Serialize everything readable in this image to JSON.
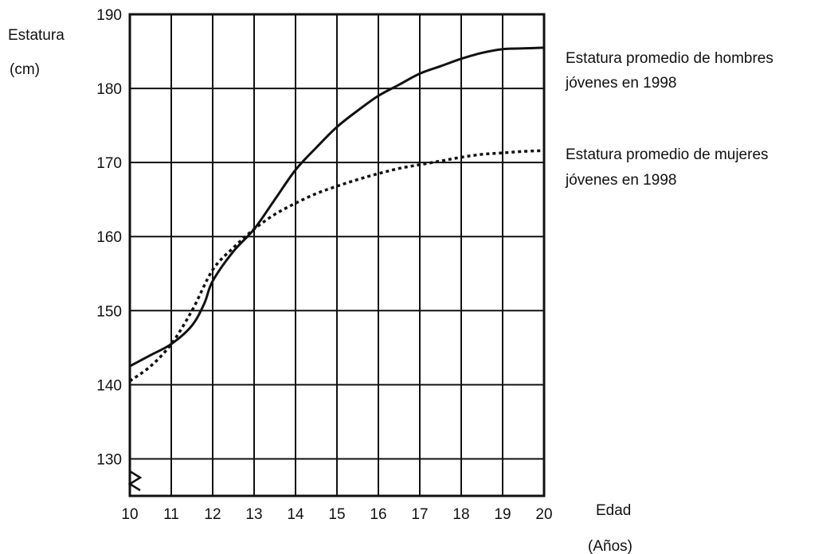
{
  "chart_data": {
    "type": "line",
    "title": "",
    "ylabel": "Estatura",
    "ylabel_unit": "(cm)",
    "xlabel": "Edad",
    "xlabel_unit": "(Años)",
    "xlim": [
      10,
      20
    ],
    "ylim": [
      125,
      190
    ],
    "x_ticks": [
      10,
      11,
      12,
      13,
      14,
      15,
      16,
      17,
      18,
      19,
      20
    ],
    "y_ticks": [
      130,
      140,
      150,
      160,
      170,
      180,
      190
    ],
    "grid": true,
    "axis_break": "zigzag near 130 on y-axis",
    "series": [
      {
        "name": "Estatura promedio de hombres jóvenes en 1998",
        "label_lines": [
          "Estatura promedio de  hombres",
          "jóvenes en 1998"
        ],
        "style": "solid",
        "color": "#111111",
        "x": [
          10,
          10.5,
          11,
          11.5,
          11.8,
          12,
          12.5,
          13,
          13.5,
          14,
          14.5,
          15,
          15.5,
          16,
          16.5,
          17,
          17.5,
          18,
          18.5,
          19,
          19.5,
          20
        ],
        "values": [
          142.5,
          144,
          145.5,
          148,
          151,
          154,
          158,
          161,
          165,
          169,
          172,
          174.8,
          177,
          179,
          180.5,
          182,
          183,
          184,
          184.8,
          185.3,
          185.4,
          185.5
        ]
      },
      {
        "name": "Estatura promedio de mujeres jóvenes en 1998",
        "label_lines": [
          "Estatura promedio de mujeres",
          "jóvenes en 1998"
        ],
        "style": "dotted",
        "color": "#111111",
        "x": [
          10,
          10.5,
          11,
          11.5,
          12,
          12.5,
          13,
          13.5,
          14,
          14.5,
          15,
          15.5,
          16,
          16.5,
          17,
          17.5,
          18,
          18.5,
          19,
          19.5,
          20
        ],
        "values": [
          140.5,
          142.5,
          145.5,
          150,
          155.5,
          158.5,
          161,
          163,
          164.5,
          165.8,
          166.8,
          167.7,
          168.5,
          169.2,
          169.7,
          170.2,
          170.7,
          171.1,
          171.3,
          171.5,
          171.6
        ]
      }
    ]
  }
}
